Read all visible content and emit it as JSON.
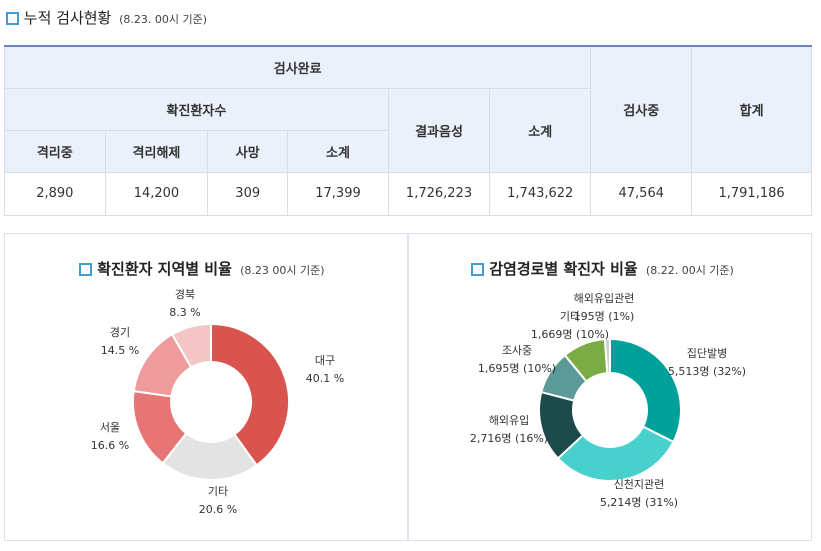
{
  "section_title": "누적 검사현황",
  "section_date": "(8.23. 00시 기준)",
  "table": {
    "h_done": "검사완료",
    "h_confirmed": "확진환자수",
    "h_negative": "결과음성",
    "h_subtotal2": "소계",
    "h_testing": "검사중",
    "h_total": "합계",
    "h_isolating": "격리중",
    "h_released": "격리해제",
    "h_dead": "사망",
    "h_subtotal1": "소계",
    "row": [
      "2,890",
      "14,200",
      "309",
      "17,399",
      "1,726,223",
      "1,743,622",
      "47,564",
      "1,791,186"
    ]
  },
  "chart_data": [
    {
      "type": "pie",
      "title": "확진환자 지역별 비율",
      "subtitle": "(8.23 00시 기준)",
      "slices": [
        {
          "label": "대구",
          "pct_label": "40.1 %",
          "value": 40.1,
          "color": "#d9534f"
        },
        {
          "label": "기타",
          "pct_label": "20.6 %",
          "value": 20.6,
          "color": "#e3e3e3"
        },
        {
          "label": "서울",
          "pct_label": "16.6 %",
          "value": 16.6,
          "color": "#e87575"
        },
        {
          "label": "경기",
          "pct_label": "14.5 %",
          "value": 14.5,
          "color": "#f09b9b"
        },
        {
          "label": "경북",
          "pct_label": "8.3 %",
          "value": 8.3,
          "color": "#f4c5c5"
        }
      ]
    },
    {
      "type": "pie",
      "title": "감염경로별 확진자 비율",
      "subtitle": "(8.22. 00시 기준)",
      "slices": [
        {
          "label": "집단발병",
          "value_label": "5,513명 (32%)",
          "value": 5513,
          "color": "#00a19a"
        },
        {
          "label": "신천지관련",
          "value_label": "5,214명 (31%)",
          "value": 5214,
          "color": "#48d1cc"
        },
        {
          "label": "해외유입",
          "value_label": "2,716명 (16%)",
          "value": 2716,
          "color": "#1d4a4a"
        },
        {
          "label": "조사중",
          "value_label": "1,695명 (10%)",
          "value": 1695,
          "color": "#5b9a96"
        },
        {
          "label": "기타",
          "value_label": "1,669명 (10%)",
          "value": 1669,
          "color": "#7aab45"
        },
        {
          "label": "해외유입관련",
          "value_label": "195명 (1%)",
          "value": 195,
          "color": "#c8d0d0"
        }
      ]
    }
  ]
}
